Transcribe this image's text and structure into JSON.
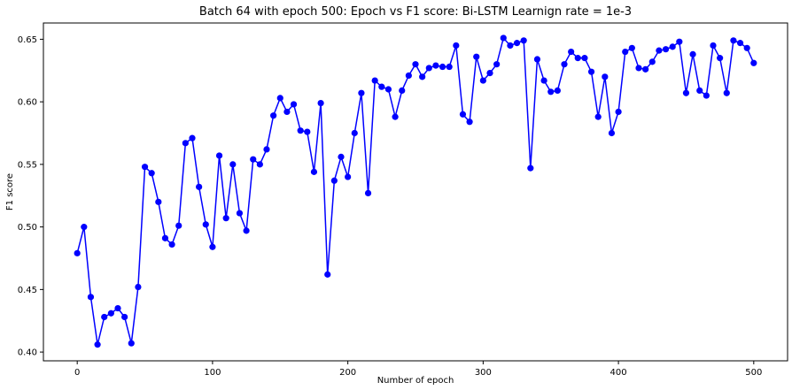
{
  "chart_data": {
    "type": "line",
    "title": "Batch 64 with epoch 500: Epoch vs F1 score: Bi-LSTM Learnign rate = 1e-3",
    "xlabel": "Number of epoch",
    "ylabel": "F1 score",
    "xlim": [
      -25,
      525
    ],
    "ylim": [
      0.393,
      0.663
    ],
    "xticks": [
      0,
      100,
      200,
      300,
      400,
      500
    ],
    "yticks": [
      0.4,
      0.45,
      0.5,
      0.55,
      0.6,
      0.65
    ],
    "xtick_labels": [
      "0",
      "100",
      "200",
      "300",
      "400",
      "500"
    ],
    "ytick_labels": [
      "0.40",
      "0.45",
      "0.50",
      "0.55",
      "0.60",
      "0.65"
    ],
    "grid": false,
    "legend": null,
    "series": [
      {
        "color": "#0000ff",
        "marker": "circle",
        "x": [
          0,
          5,
          10,
          15,
          20,
          25,
          30,
          35,
          40,
          45,
          50,
          55,
          60,
          65,
          70,
          75,
          80,
          85,
          90,
          95,
          100,
          105,
          110,
          115,
          120,
          125,
          130,
          135,
          140,
          145,
          150,
          155,
          160,
          165,
          170,
          175,
          180,
          185,
          190,
          195,
          200,
          205,
          210,
          215,
          220,
          225,
          230,
          235,
          240,
          245,
          250,
          255,
          260,
          265,
          270,
          275,
          280,
          285,
          290,
          295,
          300,
          305,
          310,
          315,
          320,
          325,
          330,
          335,
          340,
          345,
          350,
          355,
          360,
          365,
          370,
          375,
          380,
          385,
          390,
          395,
          400,
          405,
          410,
          415,
          420,
          425,
          430,
          435,
          440,
          445,
          450,
          455,
          460,
          465,
          470,
          475,
          480,
          485,
          490,
          495,
          500
        ],
        "y": [
          0.479,
          0.5,
          0.444,
          0.406,
          0.428,
          0.431,
          0.435,
          0.428,
          0.407,
          0.452,
          0.548,
          0.543,
          0.52,
          0.491,
          0.486,
          0.501,
          0.567,
          0.571,
          0.532,
          0.502,
          0.484,
          0.557,
          0.507,
          0.55,
          0.511,
          0.497,
          0.554,
          0.55,
          0.562,
          0.589,
          0.603,
          0.592,
          0.598,
          0.577,
          0.576,
          0.544,
          0.599,
          0.462,
          0.537,
          0.556,
          0.54,
          0.575,
          0.607,
          0.527,
          0.617,
          0.612,
          0.61,
          0.588,
          0.609,
          0.621,
          0.63,
          0.62,
          0.627,
          0.629,
          0.628,
          0.628,
          0.645,
          0.59,
          0.584,
          0.636,
          0.617,
          0.623,
          0.63,
          0.651,
          0.645,
          0.647,
          0.649,
          0.547,
          0.634,
          0.617,
          0.608,
          0.609,
          0.63,
          0.64,
          0.635,
          0.635,
          0.624,
          0.588,
          0.62,
          0.575,
          0.592,
          0.64,
          0.643,
          0.627,
          0.626,
          0.632,
          0.641,
          0.642,
          0.644,
          0.648,
          0.607,
          0.638,
          0.609,
          0.605,
          0.645,
          0.635,
          0.607,
          0.649,
          0.647,
          0.643,
          0.631
        ]
      }
    ]
  }
}
